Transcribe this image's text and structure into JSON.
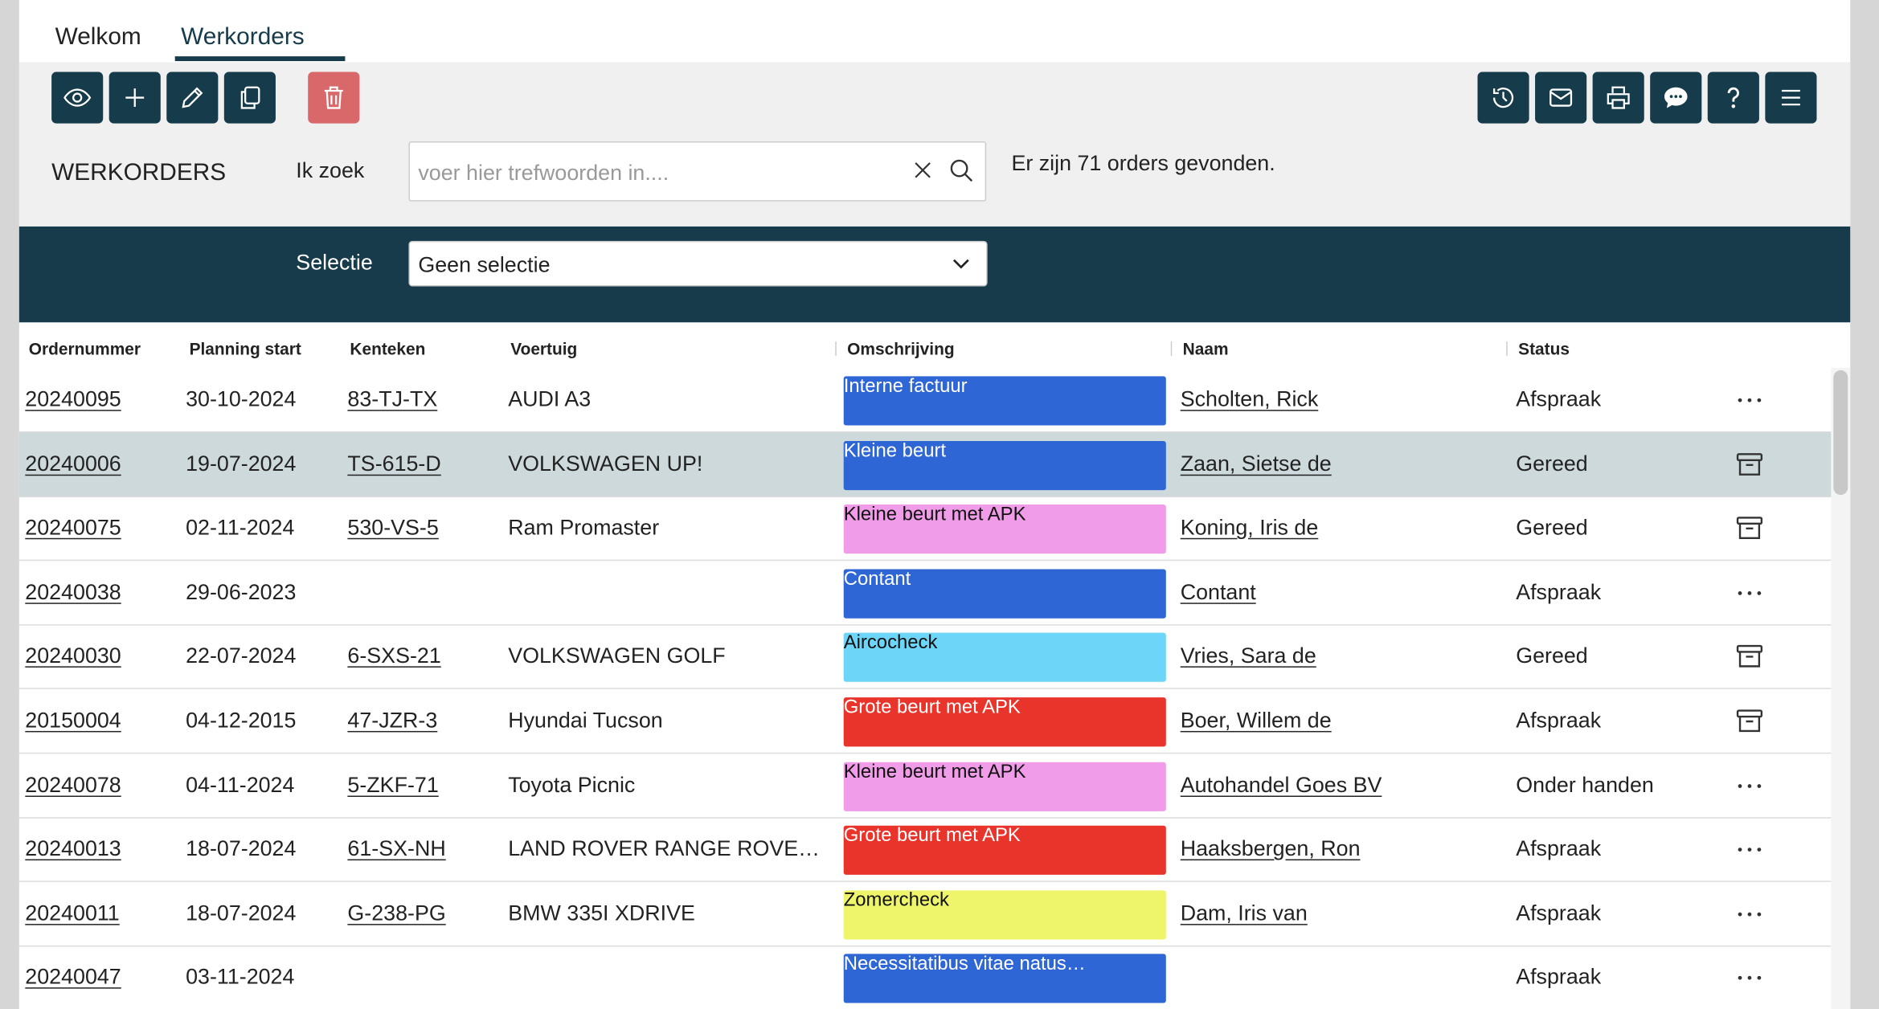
{
  "tabs": [
    "Welkom",
    "Werkorders"
  ],
  "page_title": "WERKORDERS",
  "search": {
    "label": "Ik zoek",
    "placeholder": "voer hier trefwoorden in....",
    "result": "Er zijn 71 orders gevonden."
  },
  "selection": {
    "label": "Selectie",
    "value": "Geen selectie"
  },
  "table": {
    "headers": [
      "Ordernummer",
      "Planning start",
      "Kenteken",
      "Voertuig",
      "Omschrijving",
      "Naam",
      "Status"
    ],
    "rows": [
      [
        "20240095",
        "30-10-2024",
        "83-TJ-TX",
        "AUDI A3",
        "Interne factuur",
        "Scholten, Rick",
        "Afspraak"
      ],
      [
        "20240006",
        "19-07-2024",
        "TS-615-D",
        "VOLKSWAGEN UP!",
        "Kleine beurt",
        "Zaan, Sietse de",
        "Gereed"
      ],
      [
        "20240075",
        "02-11-2024",
        "530-VS-5",
        "Ram Promaster",
        "Kleine beurt met APK",
        "Koning, Iris de",
        "Gereed"
      ],
      [
        "20240038",
        "29-06-2023",
        null,
        null,
        "Contant",
        "Contant",
        "Afspraak"
      ],
      [
        "20240030",
        "22-07-2024",
        "6-SXS-21",
        "VOLKSWAGEN GOLF",
        "Aircocheck",
        "Vries, Sara de",
        "Gereed"
      ],
      [
        "20150004",
        "04-12-2015",
        "47-JZR-3",
        "Hyundai Tucson",
        "Grote beurt met APK",
        "Boer, Willem de",
        "Afspraak"
      ],
      [
        "20240078",
        "04-11-2024",
        "5-ZKF-71",
        "Toyota Picnic",
        "Kleine beurt met APK",
        "Autohandel Goes BV",
        "Onder handen"
      ],
      [
        "20240013",
        "18-07-2024",
        "61-SX-NH",
        "LAND ROVER RANGE ROVE…",
        "Grote beurt met APK",
        "Haaksbergen, Ron",
        "Afspraak"
      ],
      [
        "20240011",
        "18-07-2024",
        "G-238-PG",
        "BMW 335I XDRIVE",
        "Zomercheck",
        "Dam, Iris van",
        "Afspraak"
      ],
      [
        "20240047",
        "03-11-2024",
        null,
        null,
        "Necessitatibus vitae natus…",
        null,
        "Afspraak"
      ]
    ]
  }
}
